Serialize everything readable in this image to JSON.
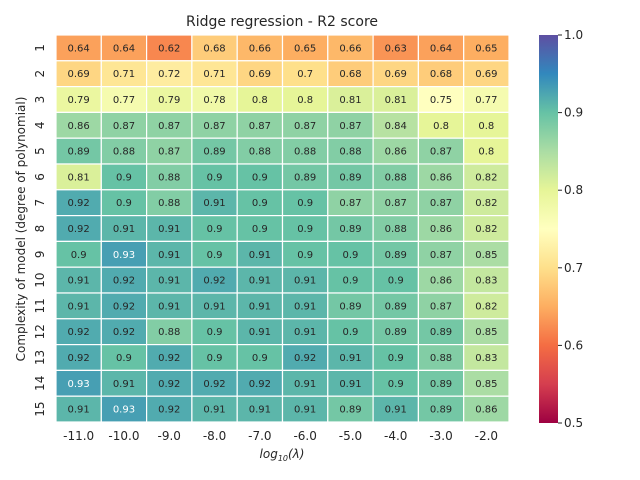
{
  "chart_data": {
    "type": "heatmap",
    "title": "Ridge regression - R2 score",
    "xlabel_base": "log",
    "xlabel_sub": "10",
    "xlabel_rest": "(λ)",
    "ylabel": "Complexity of model (degree of polynomial)",
    "x_tick_labels": [
      "-11.0",
      "-10.0",
      "-9.0",
      "-8.0",
      "-7.0",
      "-6.0",
      "-5.0",
      "-4.0",
      "-3.0",
      "-2.0"
    ],
    "y_tick_labels": [
      "1",
      "2",
      "3",
      "4",
      "5",
      "6",
      "7",
      "8",
      "9",
      "10",
      "11",
      "12",
      "13",
      "14",
      "15"
    ],
    "values": [
      [
        "0.64",
        "0.64",
        "0.62",
        "0.68",
        "0.66",
        "0.65",
        "0.66",
        "0.63",
        "0.64",
        "0.65"
      ],
      [
        "0.69",
        "0.71",
        "0.72",
        "0.71",
        "0.69",
        "0.7",
        "0.68",
        "0.69",
        "0.68",
        "0.69"
      ],
      [
        "0.79",
        "0.77",
        "0.79",
        "0.78",
        "0.8",
        "0.8",
        "0.81",
        "0.81",
        "0.75",
        "0.77"
      ],
      [
        "0.86",
        "0.87",
        "0.87",
        "0.87",
        "0.87",
        "0.87",
        "0.87",
        "0.84",
        "0.8",
        "0.8"
      ],
      [
        "0.89",
        "0.88",
        "0.87",
        "0.89",
        "0.88",
        "0.88",
        "0.88",
        "0.86",
        "0.87",
        "0.8"
      ],
      [
        "0.81",
        "0.9",
        "0.88",
        "0.9",
        "0.9",
        "0.89",
        "0.89",
        "0.88",
        "0.86",
        "0.82"
      ],
      [
        "0.92",
        "0.9",
        "0.88",
        "0.91",
        "0.9",
        "0.9",
        "0.87",
        "0.87",
        "0.87",
        "0.82"
      ],
      [
        "0.92",
        "0.91",
        "0.91",
        "0.9",
        "0.9",
        "0.9",
        "0.89",
        "0.88",
        "0.86",
        "0.82"
      ],
      [
        "0.9",
        "0.93",
        "0.91",
        "0.9",
        "0.91",
        "0.9",
        "0.9",
        "0.89",
        "0.87",
        "0.85"
      ],
      [
        "0.91",
        "0.92",
        "0.91",
        "0.92",
        "0.91",
        "0.91",
        "0.9",
        "0.9",
        "0.86",
        "0.83"
      ],
      [
        "0.91",
        "0.92",
        "0.91",
        "0.91",
        "0.91",
        "0.91",
        "0.89",
        "0.89",
        "0.87",
        "0.82"
      ],
      [
        "0.92",
        "0.92",
        "0.88",
        "0.9",
        "0.91",
        "0.91",
        "0.9",
        "0.89",
        "0.89",
        "0.85"
      ],
      [
        "0.92",
        "0.9",
        "0.92",
        "0.9",
        "0.9",
        "0.92",
        "0.91",
        "0.9",
        "0.88",
        "0.83"
      ],
      [
        "0.93",
        "0.91",
        "0.92",
        "0.92",
        "0.92",
        "0.91",
        "0.91",
        "0.9",
        "0.89",
        "0.85"
      ],
      [
        "0.91",
        "0.93",
        "0.92",
        "0.91",
        "0.91",
        "0.91",
        "0.89",
        "0.91",
        "0.89",
        "0.86"
      ]
    ],
    "colorbar": {
      "colormap": "Spectral",
      "vmin": 0.5,
      "vmax": 1.0,
      "tick_values": [
        0.5,
        0.6,
        0.7,
        0.8,
        0.9,
        1.0
      ],
      "tick_labels": [
        "0.5",
        "0.6",
        "0.7",
        "0.8",
        "0.9",
        "1.0"
      ]
    },
    "cell_border_color": "#ffffff",
    "text_color_dark": "#262626",
    "text_color_light": "#ffffff"
  }
}
